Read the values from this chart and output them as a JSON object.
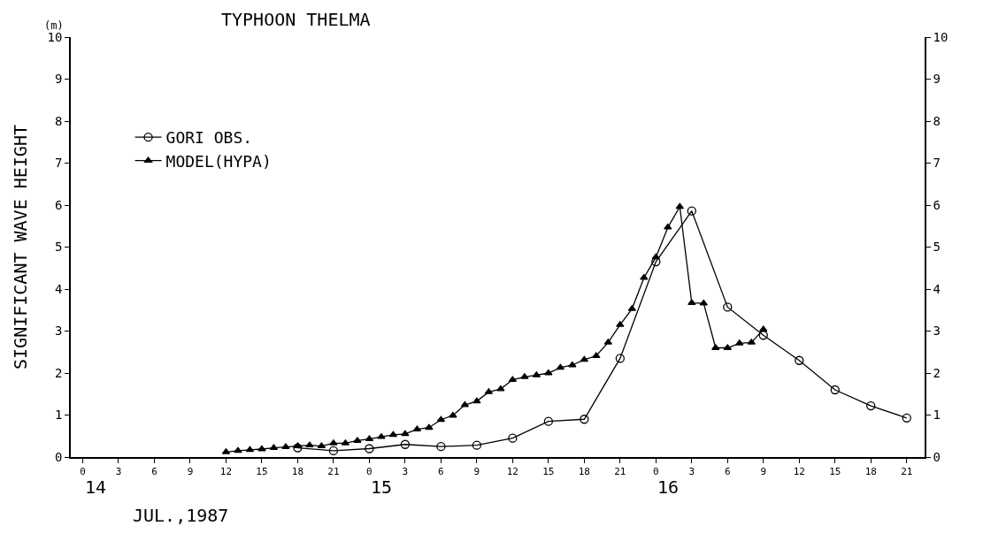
{
  "chart_data": {
    "type": "line",
    "title": "TYPHOON THELMA",
    "ylabel": "SIGNIFICANT WAVE HEIGHT",
    "annotations": [
      "(m)",
      "JUL.,1987",
      "14",
      "15",
      "16"
    ],
    "xlim": [
      "1987-07-13T23:00",
      "1987-07-16T22:30"
    ],
    "xticks": [
      {
        "value": "1987-07-14T00:00",
        "label": "0"
      },
      {
        "value": "1987-07-14T03:00",
        "label": "3"
      },
      {
        "value": "1987-07-14T06:00",
        "label": "6"
      },
      {
        "value": "1987-07-14T09:00",
        "label": "9"
      },
      {
        "value": "1987-07-14T12:00",
        "label": "12"
      },
      {
        "value": "1987-07-14T15:00",
        "label": "15"
      },
      {
        "value": "1987-07-14T18:00",
        "label": "18"
      },
      {
        "value": "1987-07-14T21:00",
        "label": "21"
      },
      {
        "value": "1987-07-15T00:00",
        "label": "0"
      },
      {
        "value": "1987-07-15T03:00",
        "label": "3"
      },
      {
        "value": "1987-07-15T06:00",
        "label": "6"
      },
      {
        "value": "1987-07-15T09:00",
        "label": "9"
      },
      {
        "value": "1987-07-15T12:00",
        "label": "12"
      },
      {
        "value": "1987-07-15T15:00",
        "label": "15"
      },
      {
        "value": "1987-07-15T18:00",
        "label": "18"
      },
      {
        "value": "1987-07-15T21:00",
        "label": "21"
      },
      {
        "value": "1987-07-16T00:00",
        "label": "0"
      },
      {
        "value": "1987-07-16T03:00",
        "label": "3"
      },
      {
        "value": "1987-07-16T06:00",
        "label": "6"
      },
      {
        "value": "1987-07-16T09:00",
        "label": "9"
      },
      {
        "value": "1987-07-16T12:00",
        "label": "12"
      },
      {
        "value": "1987-07-16T15:00",
        "label": "15"
      },
      {
        "value": "1987-07-16T18:00",
        "label": "18"
      },
      {
        "value": "1987-07-16T21:00",
        "label": "21"
      }
    ],
    "ylim": [
      0,
      10
    ],
    "yticks": [
      0,
      1,
      2,
      3,
      4,
      5,
      6,
      7,
      8,
      9,
      10
    ],
    "y2lim": [
      0,
      10
    ],
    "y2ticks": [
      0,
      1,
      2,
      3,
      4,
      5,
      6,
      7,
      8,
      9,
      10
    ],
    "legend": "top left",
    "series": [
      {
        "name": "GORI OBS.",
        "color": "#000000",
        "marker": "circle",
        "x": [
          "1987-07-14T18:00",
          "1987-07-14T21:00",
          "1987-07-15T00:00",
          "1987-07-15T03:00",
          "1987-07-15T06:00",
          "1987-07-15T09:00",
          "1987-07-15T12:00",
          "1987-07-15T15:00",
          "1987-07-15T18:00",
          "1987-07-15T21:00",
          "1987-07-16T00:00",
          "1987-07-16T03:00",
          "1987-07-16T06:00",
          "1987-07-16T09:00",
          "1987-07-16T12:00",
          "1987-07-16T15:00",
          "1987-07-16T18:00",
          "1987-07-16T21:00"
        ],
        "values": [
          0.22,
          0.15,
          0.2,
          0.3,
          0.25,
          0.28,
          0.45,
          0.85,
          0.9,
          2.35,
          4.65,
          5.86,
          3.57,
          2.9,
          2.3,
          1.6,
          1.22,
          0.93
        ]
      },
      {
        "name": "MODEL(HYPA)",
        "color": "#000000",
        "marker": "triangle",
        "x": [
          "1987-07-14T12:00",
          "1987-07-14T13:00",
          "1987-07-14T14:00",
          "1987-07-14T15:00",
          "1987-07-14T16:00",
          "1987-07-14T17:00",
          "1987-07-14T18:00",
          "1987-07-14T19:00",
          "1987-07-14T20:00",
          "1987-07-14T21:00",
          "1987-07-14T22:00",
          "1987-07-14T23:00",
          "1987-07-15T00:00",
          "1987-07-15T01:00",
          "1987-07-15T02:00",
          "1987-07-15T03:00",
          "1987-07-15T04:00",
          "1987-07-15T05:00",
          "1987-07-15T06:00",
          "1987-07-15T07:00",
          "1987-07-15T08:00",
          "1987-07-15T09:00",
          "1987-07-15T10:00",
          "1987-07-15T11:00",
          "1987-07-15T12:00",
          "1987-07-15T13:00",
          "1987-07-15T14:00",
          "1987-07-15T15:00",
          "1987-07-15T16:00",
          "1987-07-15T17:00",
          "1987-07-15T18:00",
          "1987-07-15T19:00",
          "1987-07-15T20:00",
          "1987-07-15T21:00",
          "1987-07-15T22:00",
          "1987-07-15T23:00",
          "1987-07-16T00:00",
          "1987-07-16T01:00",
          "1987-07-16T02:00",
          "1987-07-16T03:00",
          "1987-07-16T04:00",
          "1987-07-16T05:00",
          "1987-07-16T06:00",
          "1987-07-16T07:00",
          "1987-07-16T08:00",
          "1987-07-16T09:00"
        ],
        "values": [
          0.12,
          0.15,
          0.17,
          0.19,
          0.22,
          0.24,
          0.26,
          0.28,
          0.26,
          0.33,
          0.33,
          0.39,
          0.43,
          0.48,
          0.53,
          0.55,
          0.66,
          0.7,
          0.89,
          0.99,
          1.24,
          1.33,
          1.55,
          1.62,
          1.84,
          1.91,
          1.95,
          2.0,
          2.13,
          2.19,
          2.32,
          2.41,
          2.73,
          3.15,
          3.53,
          4.27,
          4.76,
          5.47,
          5.96,
          3.67,
          3.66,
          2.6,
          2.6,
          2.71,
          2.73,
          3.04
        ]
      }
    ]
  }
}
